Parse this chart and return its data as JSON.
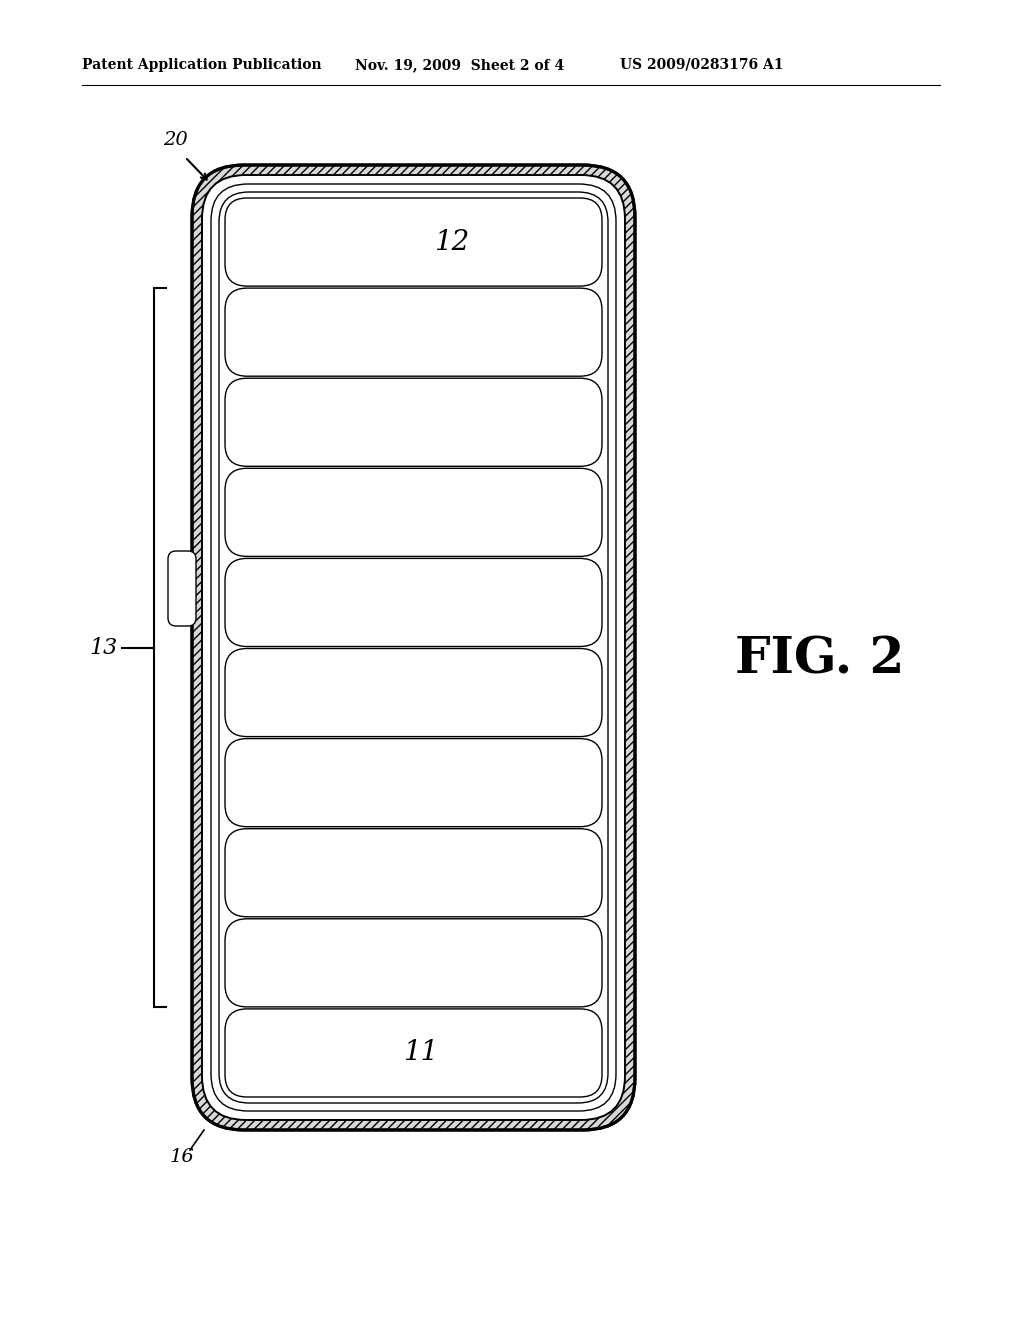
{
  "header_left": "Patent Application Publication",
  "header_mid": "Nov. 19, 2009  Sheet 2 of 4",
  "header_right": "US 2009/0283176 A1",
  "fig_label": "FIG. 2",
  "label_20": "20",
  "label_12": "12",
  "label_11": "11",
  "label_13": "13",
  "label_16": "16",
  "bg_color": "#ffffff",
  "line_color": "#000000",
  "n_total_cells": 10,
  "n_middle_cells": 8
}
